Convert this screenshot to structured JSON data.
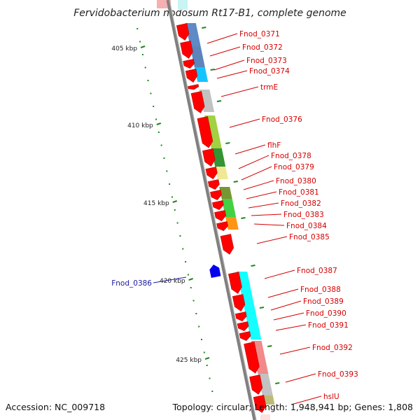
{
  "title": "Fervidobacterium nodosum Rt17-B1, complete genome",
  "footer": {
    "accession": "Accession: NC_009718",
    "topology": "Topology: circular; Length: 1,948,941 bp; Genes: 1,808"
  },
  "scale_labels": [
    "405 kbp",
    "410 kbp",
    "415 kbp",
    "420 kbp",
    "425 kbp"
  ],
  "genes_right": [
    "Fnod_0371",
    "Fnod_0372",
    "Fnod_0373",
    "Fnod_0374",
    "trmE",
    "Fnod_0376",
    "flhF",
    "Fnod_0378",
    "Fnod_0379",
    "Fnod_0380",
    "Fnod_0381",
    "Fnod_0382",
    "Fnod_0383",
    "Fnod_0384",
    "Fnod_0385",
    "Fnod_0387",
    "Fnod_0388",
    "Fnod_0389",
    "Fnod_0390",
    "Fnod_0391",
    "Fnod_0392",
    "Fnod_0393",
    "hslU"
  ],
  "genes_left": [
    "Fnod_0386"
  ],
  "colors": {
    "strand_forward": "#ff0000",
    "strand_reverse": "#0000ee",
    "label_forward": "#d40000",
    "label_reverse": "#1a1aa0",
    "backbone": "#808080",
    "tick": "#1a8a1a"
  }
}
